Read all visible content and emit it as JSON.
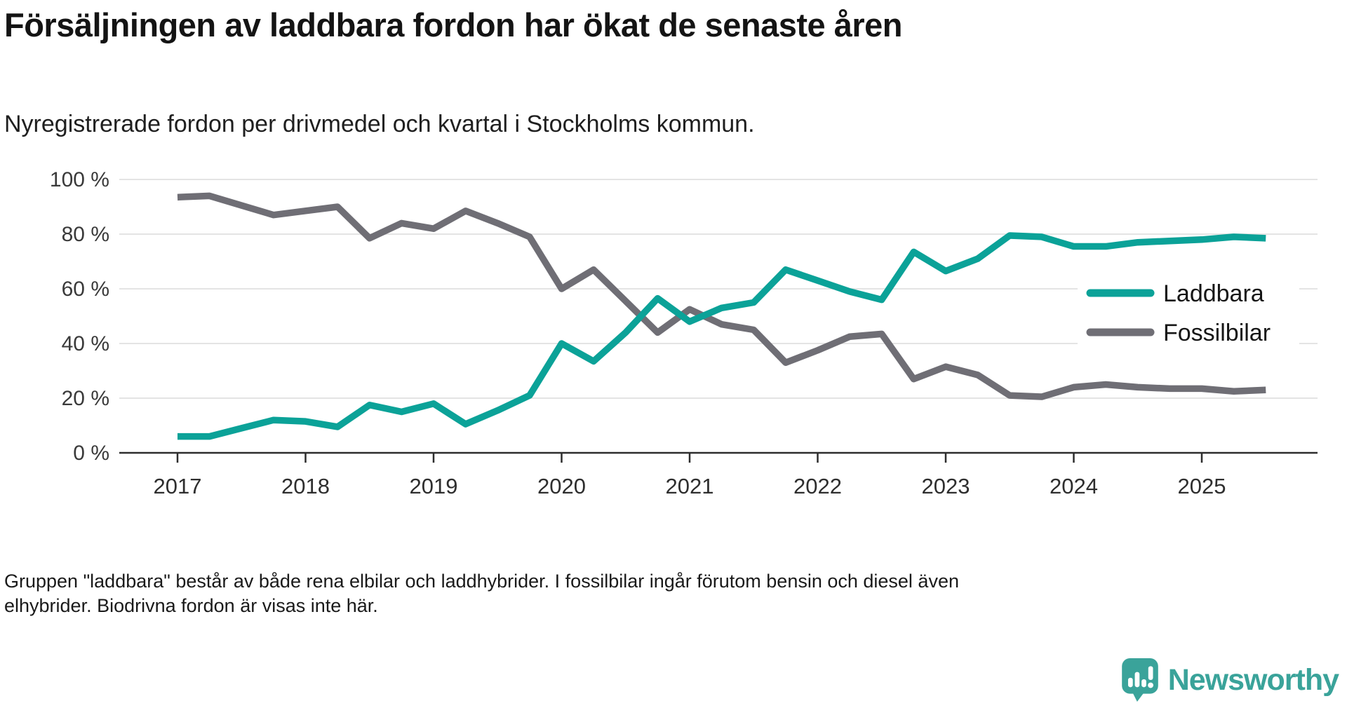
{
  "header": {
    "title": "Försäljningen av laddbara fordon har ökat de senaste åren",
    "subtitle": "Nyregistrerade fordon per drivmedel och kvartal i Stockholms kommun."
  },
  "footer": {
    "note_line1": "Gruppen \"laddbara\" består av både rena elbilar och laddhybrider. I fossilbilar ingår förutom bensin och diesel även",
    "note_line2": "elhybrider. Biodrivna fordon är visas inte här."
  },
  "branding": {
    "name": "Newsworthy",
    "color": "#3aa39a"
  },
  "colors": {
    "laddbara_line": "#0ba298",
    "fossilbilar_line": "#6f6e75",
    "gridline": "#e4e4e4",
    "axis": "#2d2d2d",
    "text_dark": "#161616"
  },
  "chart_data": {
    "type": "line",
    "title": "Försäljningen av laddbara fordon har ökat de senaste åren",
    "subtitle": "Nyregistrerade fordon per drivmedel och kvartal i Stockholms kommun.",
    "unit": "%",
    "grid": "horizontal",
    "legend_position": "inside-right",
    "ylim": [
      0,
      100
    ],
    "y_ticks": [
      0,
      20,
      40,
      60,
      80,
      100
    ],
    "y_tick_labels": [
      "0 %",
      "20 %",
      "40 %",
      "60 %",
      "80 %",
      "100 %"
    ],
    "x_tick_labels": [
      "2017",
      "2018",
      "2019",
      "2020",
      "2021",
      "2022",
      "2023",
      "2024",
      "2025"
    ],
    "categories": [
      "2017 Q1",
      "2017 Q2",
      "2017 Q3",
      "2017 Q4",
      "2018 Q1",
      "2018 Q2",
      "2018 Q3",
      "2018 Q4",
      "2019 Q1",
      "2019 Q2",
      "2019 Q3",
      "2019 Q4",
      "2020 Q1",
      "2020 Q2",
      "2020 Q3",
      "2020 Q4",
      "2021 Q1",
      "2021 Q2",
      "2021 Q3",
      "2021 Q4",
      "2022 Q1",
      "2022 Q2",
      "2022 Q3",
      "2022 Q4",
      "2023 Q1",
      "2023 Q2",
      "2023 Q3",
      "2023 Q4",
      "2024 Q1",
      "2024 Q2",
      "2024 Q3",
      "2024 Q4",
      "2025 Q1",
      "2025 Q2",
      "2025 Q3"
    ],
    "series": [
      {
        "name": "Laddbara",
        "color": "#0ba298",
        "values": [
          6,
          6,
          9,
          12,
          11.5,
          9.5,
          17.5,
          15,
          18,
          10.5,
          15.5,
          21,
          40,
          33.5,
          44,
          56.5,
          48,
          53,
          55,
          67,
          63,
          59,
          56,
          73.5,
          66.5,
          71,
          79.5,
          79,
          75.5,
          75.5,
          77,
          77.5,
          78,
          79,
          78.5
        ]
      },
      {
        "name": "Fossilbilar",
        "color": "#6f6e75",
        "values": [
          93.5,
          94,
          90.5,
          87,
          88.5,
          90,
          78.5,
          84,
          82,
          88.5,
          84,
          79,
          60,
          67,
          55.5,
          44,
          52.5,
          47,
          45,
          33,
          37.5,
          42.5,
          43.5,
          27,
          31.5,
          28.5,
          21,
          20.5,
          24,
          25,
          24,
          23.5,
          23.5,
          22.5,
          23
        ]
      }
    ]
  }
}
